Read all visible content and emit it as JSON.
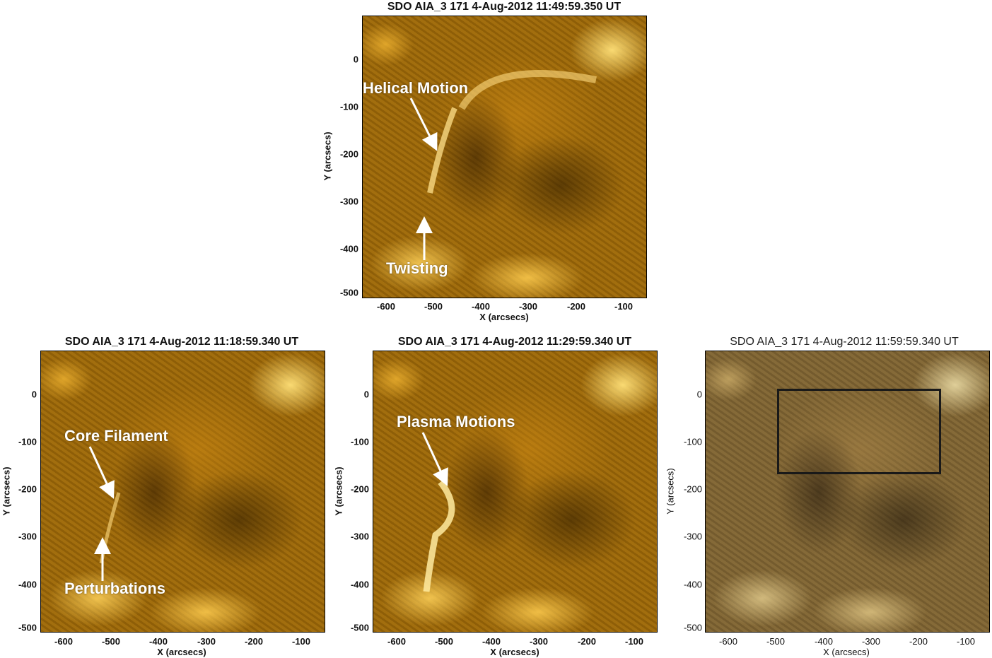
{
  "panels": [
    {
      "title": "SDO AIA_3 171  4-Aug-2012 11:49:59.350 UT",
      "ylabel": "Y (arcsecs)",
      "xlabel": "X (arcsecs)",
      "yticks": [
        "0",
        "-100",
        "-200",
        "-300",
        "-400",
        "-500"
      ],
      "xticks": [
        "-600",
        "-500",
        "-400",
        "-300",
        "-200",
        "-100"
      ],
      "annotations": [
        "Helical Motion",
        "Twisting"
      ]
    },
    {
      "title": "SDO AIA_3 171  4-Aug-2012 11:18:59.340 UT",
      "ylabel": "Y (arcsecs)",
      "xlabel": "X (arcsecs)",
      "yticks": [
        "0",
        "-100",
        "-200",
        "-300",
        "-400",
        "-500"
      ],
      "xticks": [
        "-600",
        "-500",
        "-400",
        "-300",
        "-200",
        "-100"
      ],
      "annotations": [
        "Core Filament",
        "Perturbations"
      ]
    },
    {
      "title": "SDO AIA_3 171  4-Aug-2012 11:29:59.340 UT",
      "ylabel": "Y (arcsecs)",
      "xlabel": "X (arcsecs)",
      "yticks": [
        "0",
        "-100",
        "-200",
        "-300",
        "-400",
        "-500"
      ],
      "xticks": [
        "-600",
        "-500",
        "-400",
        "-300",
        "-200",
        "-100"
      ],
      "annotations": [
        "Plasma Motions"
      ]
    },
    {
      "title": "SDO AIA_3 171  4-Aug-2012 11:59:59.340 UT",
      "ylabel": "Y (arcsecs)",
      "xlabel": "X (arcsecs)",
      "yticks": [
        "0",
        "-100",
        "-200",
        "-300",
        "-400",
        "-500"
      ],
      "xticks": [
        "-600",
        "-500",
        "-400",
        "-300",
        "-200",
        "-100"
      ],
      "annotations": []
    }
  ],
  "colors": {
    "aia171": "#c88a10",
    "annotation": "#ffffff",
    "roi_box": "#1a1a1a"
  }
}
